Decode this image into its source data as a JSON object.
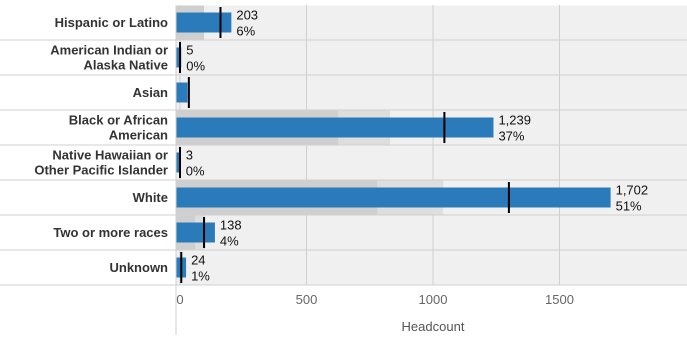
{
  "chart_data": {
    "type": "bar",
    "orientation": "horizontal",
    "xlabel": "Headcount",
    "xlim": [
      0,
      1950
    ],
    "xticks": [
      0,
      500,
      1000,
      1500
    ],
    "xtick_labels": [
      "0",
      "500",
      "1000",
      "1500"
    ],
    "grid": true,
    "categories": [
      [
        "Hispanic or Latino"
      ],
      [
        "American Indian or",
        "Alaska Native"
      ],
      [
        "Asian"
      ],
      [
        "Black or African",
        "American"
      ],
      [
        "Native Hawaiian or",
        "Other Pacific Islander"
      ],
      [
        "White"
      ],
      [
        "Two or more races"
      ],
      [
        "Unknown"
      ]
    ],
    "values": [
      203,
      5,
      30,
      1239,
      3,
      1702,
      138,
      24
    ],
    "value_labels": [
      "203",
      "5",
      "",
      "1,239",
      "3",
      "1,702",
      "138",
      "24"
    ],
    "percent_labels": [
      "6%",
      "0%",
      "",
      "37%",
      "0%",
      "51%",
      "4%",
      "1%"
    ],
    "reference_markers": [
      160,
      0,
      35,
      1045,
      0,
      1300,
      95,
      5
    ],
    "background_bands": [
      {
        "dark": 95,
        "light": 95
      },
      {
        "dark": 0,
        "light": 0
      },
      {
        "dark": 0,
        "light": 0
      },
      {
        "dark": 625,
        "light": 830
      },
      {
        "dark": 0,
        "light": 0
      },
      {
        "dark": 780,
        "light": 1040
      },
      {
        "dark": 60,
        "light": 100
      },
      {
        "dark": 0,
        "light": 0
      }
    ],
    "colors": {
      "bar": "#2b7bba",
      "marker": "#000000",
      "band_dark": "#cfcfcf",
      "band_light": "#dedede",
      "row_bg": "#f0f0f0",
      "grid": "#d0d0d0"
    }
  }
}
